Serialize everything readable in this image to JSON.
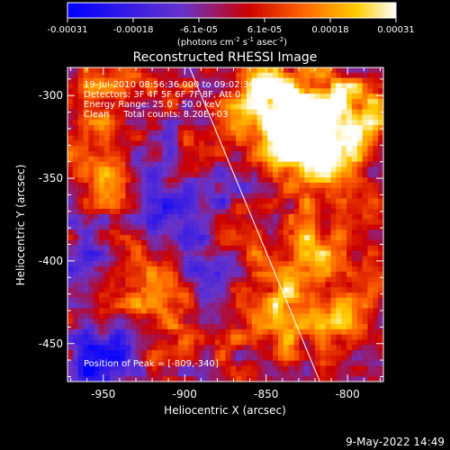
{
  "colorbar": {
    "ticks": [
      "-0.00031",
      "-0.00018",
      "-6.1e-05",
      "6.1e-05",
      "0.00018",
      "0.00031"
    ],
    "units_parts": [
      "(photons cm",
      "-2",
      " s",
      "-1",
      " asec",
      "-2",
      ")"
    ]
  },
  "title": "Reconstructed RHESSI Image",
  "annotations": {
    "time": "19-Jul-2010 08:56:36.000 to 09:02:36.000",
    "detectors": "Detectors: 3F 4F 5F 6F 7F 8F, Att 0",
    "energy": "Energy Range: 25.0 - 50.0 keV",
    "clean": "Clean     Total counts: 8.20E+03",
    "peak": "Position of Peak = [-809,-340]"
  },
  "footer_date": "9-May-2022 14:49",
  "chart_data": {
    "type": "heatmap",
    "title": "Reconstructed RHESSI Image",
    "xlabel": "Heliocentric X (arcsec)",
    "ylabel": "Heliocentric Y (arcsec)",
    "xlim": [
      -972,
      -778
    ],
    "ylim": [
      -473,
      -283
    ],
    "xticks": [
      -950,
      -900,
      -850,
      -800
    ],
    "yticks": [
      -300,
      -350,
      -400,
      -450
    ],
    "color_range": [
      -0.00031,
      0.00031
    ],
    "colormap": "blue-purple-red-yellow-white",
    "colormap_stops": [
      "#0000ff",
      "#6633cc",
      "#cc0000",
      "#ff6600",
      "#ffcc00",
      "#ffffff"
    ],
    "peak_position": [
      -809,
      -340
    ],
    "limb_line": [
      [
        -897,
        -283
      ],
      [
        -817,
        -473
      ]
    ],
    "hotspots": [
      {
        "x": -830,
        "y": -320,
        "v": 0.00031
      },
      {
        "x": -814,
        "y": -340,
        "v": 0.00029
      },
      {
        "x": -845,
        "y": -300,
        "v": 0.00024
      },
      {
        "x": -800,
        "y": -310,
        "v": 0.00022
      },
      {
        "x": -822,
        "y": -395,
        "v": 0.00018
      },
      {
        "x": -838,
        "y": -430,
        "v": 0.00021
      },
      {
        "x": -805,
        "y": -440,
        "v": 0.00016
      },
      {
        "x": -868,
        "y": -315,
        "v": 0.00013
      },
      {
        "x": -955,
        "y": -345,
        "v": 0.00018
      },
      {
        "x": -875,
        "y": -390,
        "v": 0.00012
      },
      {
        "x": -925,
        "y": -410,
        "v": 0.0001
      },
      {
        "x": -945,
        "y": -300,
        "v": 0.00013
      },
      {
        "x": -905,
        "y": -440,
        "v": 0.0001
      },
      {
        "x": -960,
        "y": -440,
        "v": 0.00011
      },
      {
        "x": -900,
        "y": -350,
        "v": 9e-05
      },
      {
        "x": -940,
        "y": -375,
        "v": 8e-05
      }
    ],
    "coldspots": [
      {
        "x": -915,
        "y": -370,
        "v": -0.00022
      },
      {
        "x": -955,
        "y": -455,
        "v": -0.00031
      },
      {
        "x": -880,
        "y": -355,
        "v": -0.00015
      },
      {
        "x": -935,
        "y": -335,
        "v": -0.00012
      },
      {
        "x": -885,
        "y": -405,
        "v": -0.00013
      },
      {
        "x": -960,
        "y": -395,
        "v": -0.00012
      },
      {
        "x": -800,
        "y": -465,
        "v": -9e-05
      }
    ]
  }
}
